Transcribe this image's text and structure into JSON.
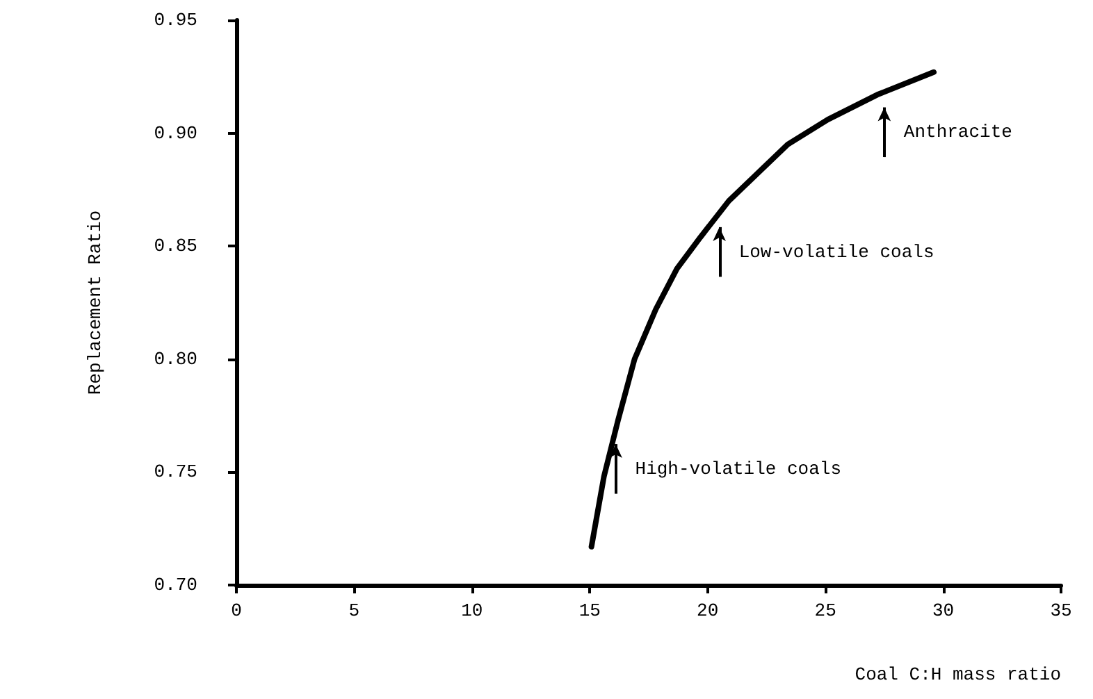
{
  "chart_data": {
    "type": "line",
    "xlabel": "Coal C:H mass ratio",
    "ylabel": "Replacement Ratio",
    "xlim": [
      0,
      35
    ],
    "xticks": [
      0,
      5,
      10,
      15,
      20,
      25,
      30,
      35
    ],
    "ylim": [
      0.7,
      0.95
    ],
    "yticks": [
      {
        "value": 0.7,
        "label": "0.70"
      },
      {
        "value": 0.75,
        "label": "0.75"
      },
      {
        "value": 0.8,
        "label": "0.80"
      },
      {
        "value": 0.85,
        "label": "0.85"
      },
      {
        "value": 0.9,
        "label": "0.90"
      },
      {
        "value": 0.95,
        "label": "0.95"
      }
    ],
    "grid": false,
    "marker": "none",
    "line_style": "solid",
    "series": [
      {
        "color": "#000000",
        "x": [
          15.07,
          15.6,
          16.2,
          16.9,
          17.8,
          18.7,
          19.7,
          20.9,
          22.1,
          23.4,
          25.1,
          27.2,
          29.6
        ],
        "values": [
          0.717,
          0.748,
          0.773,
          0.8,
          0.822,
          0.84,
          0.854,
          0.87,
          0.882,
          0.895,
          0.906,
          0.917,
          0.927
        ]
      }
    ],
    "annotations": [
      {
        "text": "High-volatile coals",
        "x": 16.1,
        "y": 0.769
      },
      {
        "text": "Low-volatile coals",
        "x": 20.5,
        "y": 0.865
      },
      {
        "text": "Anthracite",
        "x": 27.5,
        "y": 0.918
      }
    ]
  }
}
